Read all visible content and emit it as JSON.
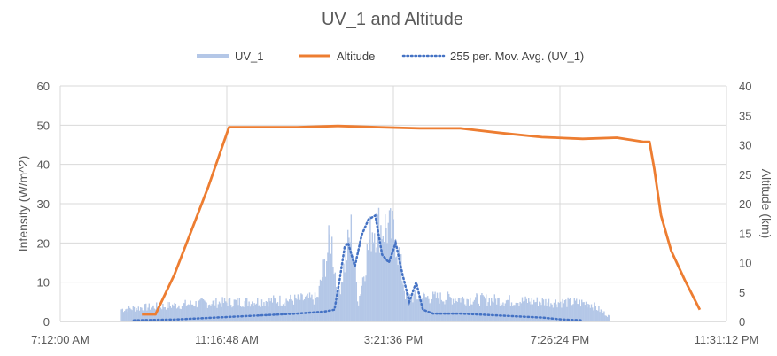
{
  "chart_data": {
    "type": "line",
    "title": "UV_1 and Altitude",
    "ylabel": "Intensity (W/m^2)",
    "y2label": "Altitude (km)",
    "xlabel": "",
    "x_ticks": [
      "7:12:00 AM",
      "11:16:48 AM",
      "3:21:36 PM",
      "7:26:24 PM",
      "11:31:12 PM"
    ],
    "xlim": [
      "7:12:00 AM",
      "11:31:12 PM"
    ],
    "ylim": [
      0,
      60
    ],
    "y_ticks": [
      "0",
      "10",
      "20",
      "30",
      "40",
      "50",
      "60"
    ],
    "y2lim": [
      0,
      40
    ],
    "y2_ticks": [
      "0",
      "5",
      "10",
      "15",
      "20",
      "25",
      "30",
      "35",
      "40"
    ],
    "grid": true,
    "legend_position": "top",
    "series": [
      {
        "name": "UV_1",
        "axis": "left",
        "color": "#b4c7e7",
        "style": "area-noisy",
        "x": [
          "8:42:00 AM",
          "9:40:00 AM",
          "10:40:00 AM",
          "11:40:00 AM",
          "12:40:00 PM",
          "1:30:00 PM",
          "1:50:00 PM",
          "2:00:00 PM",
          "2:20:00 PM",
          "2:30:00 PM",
          "2:50:00 PM",
          "3:10:00 PM",
          "3:25:00 PM",
          "3:40:00 PM",
          "4:00:00 PM",
          "5:00:00 PM",
          "6:00:00 PM",
          "7:00:00 PM",
          "8:10:00 PM",
          "8:40:00 PM"
        ],
        "values": [
          4,
          5,
          6,
          6.5,
          7,
          7.5,
          28,
          8,
          30,
          6,
          31,
          31,
          28,
          8,
          8,
          7.5,
          7,
          6.5,
          6,
          1.5
        ]
      },
      {
        "name": "Altitude",
        "axis": "right",
        "color": "#ed7d31",
        "style": "line",
        "x": [
          "9:12:00 AM",
          "9:32:00 AM",
          "10:00:00 AM",
          "10:30:00 AM",
          "10:50:00 AM",
          "11:05:00 AM",
          "11:20:00 AM",
          "12:00:00 PM",
          "1:00:00 PM",
          "2:00:00 PM",
          "3:00:00 PM",
          "4:00:00 PM",
          "5:00:00 PM",
          "6:00:00 PM",
          "7:00:00 PM",
          "8:00:00 PM",
          "8:50:00 PM",
          "9:30:00 PM",
          "9:38:00 PM",
          "9:45:00 PM",
          "9:55:00 PM",
          "10:10:00 PM",
          "10:30:00 PM",
          "10:52:00 PM"
        ],
        "values": [
          1.2,
          1.2,
          8,
          17,
          23,
          28,
          33,
          33,
          33,
          33.2,
          33,
          32.8,
          32.8,
          32,
          31.3,
          31,
          31.2,
          30.5,
          30.5,
          26,
          18,
          12,
          7,
          2
        ]
      },
      {
        "name": "255 per. Mov. Avg. (UV_1)",
        "axis": "left",
        "color": "#4472c4",
        "style": "dotted",
        "x": [
          "9:00:00 AM",
          "10:00:00 AM",
          "11:00:00 AM",
          "12:00:00 PM",
          "1:00:00 PM",
          "1:40:00 PM",
          "1:55:00 PM",
          "2:02:00 PM",
          "2:10:00 PM",
          "2:15:00 PM",
          "2:25:00 PM",
          "2:35:00 PM",
          "2:45:00 PM",
          "2:55:00 PM",
          "3:05:00 PM",
          "3:15:00 PM",
          "3:25:00 PM",
          "3:35:00 PM",
          "3:45:00 PM",
          "3:55:00 PM",
          "4:05:00 PM",
          "4:20:00 PM",
          "5:00:00 PM",
          "6:00:00 PM",
          "7:00:00 PM",
          "7:30:00 PM",
          "8:00:00 PM"
        ],
        "values": [
          0.3,
          0.5,
          1,
          1.5,
          2,
          2.5,
          3,
          10,
          19,
          20,
          14,
          22,
          26,
          27,
          17,
          15,
          20,
          12,
          5,
          10,
          3,
          2,
          2,
          1.5,
          1,
          0.5,
          0.3
        ]
      }
    ]
  }
}
